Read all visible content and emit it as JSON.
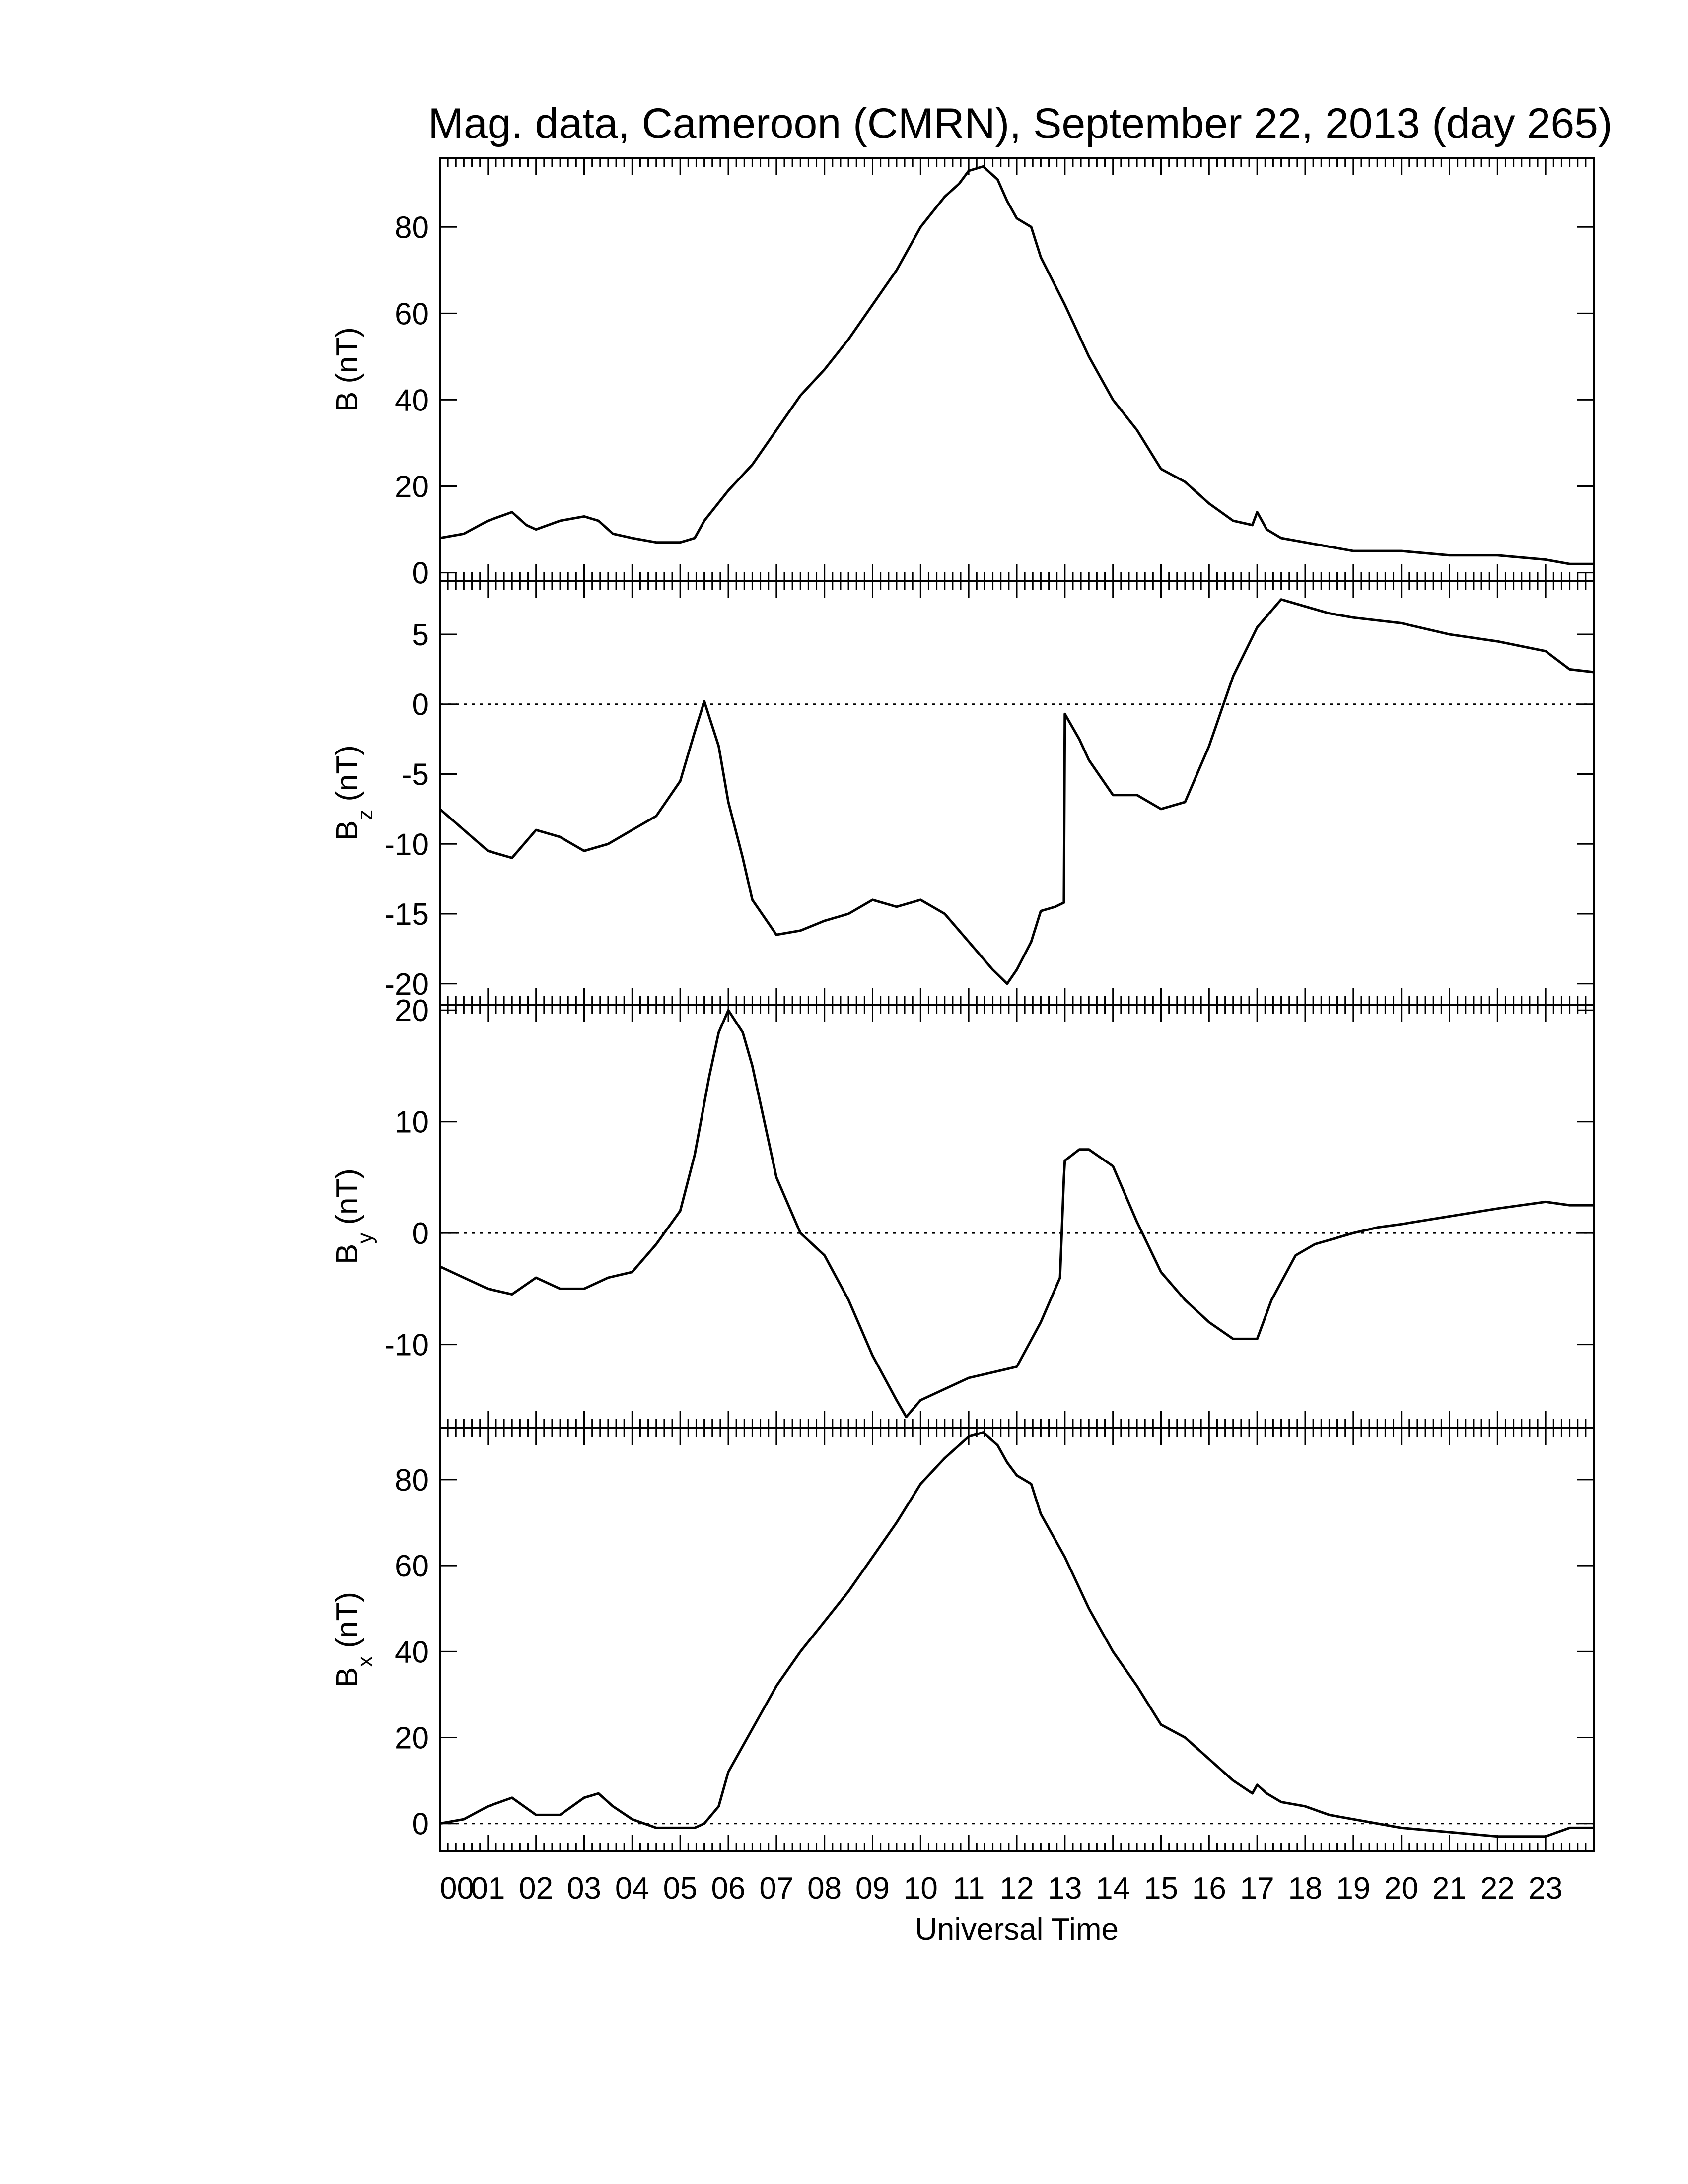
{
  "title": "Mag. data, Cameroon (CMRN), September 22, 2013 (day 265)",
  "chart_data": {
    "type": "line",
    "xlabel": "Universal Time",
    "xlim": [
      0,
      24
    ],
    "x_tick_labels": [
      "00",
      "01",
      "02",
      "03",
      "04",
      "05",
      "06",
      "07",
      "08",
      "09",
      "10",
      "11",
      "12",
      "13",
      "14",
      "15",
      "16",
      "17",
      "18",
      "19",
      "20",
      "21",
      "22",
      "23"
    ],
    "panels": [
      {
        "id": "B",
        "ylabel_main": "B",
        "ylabel_sub": "",
        "ylabel_unit": "(nT)",
        "ylim": [
          -2,
          96
        ],
        "yticks": [
          0,
          20,
          40,
          60,
          80
        ],
        "zero_line": false,
        "x": [
          0,
          0.5,
          1,
          1.5,
          1.8,
          2,
          2.5,
          3,
          3.3,
          3.6,
          4,
          4.5,
          5,
          5.3,
          5.5,
          6,
          6.5,
          7,
          7.5,
          8,
          8.5,
          9,
          9.5,
          10,
          10.5,
          10.8,
          11,
          11.3,
          11.6,
          11.8,
          12,
          12.3,
          12.5,
          13,
          13.5,
          14,
          14.5,
          15,
          15.5,
          16,
          16.5,
          16.9,
          17,
          17.2,
          17.5,
          18,
          18.5,
          19,
          20,
          21,
          22,
          23,
          23.5,
          24
        ],
        "y": [
          8,
          9,
          12,
          14,
          11,
          10,
          12,
          13,
          12,
          9,
          8,
          7,
          7,
          8,
          12,
          19,
          25,
          33,
          41,
          47,
          54,
          62,
          70,
          80,
          87,
          90,
          93,
          94,
          91,
          86,
          82,
          80,
          73,
          62,
          50,
          40,
          33,
          24,
          21,
          16,
          12,
          11,
          14,
          10,
          8,
          7,
          6,
          5,
          5,
          4,
          4,
          3,
          2,
          2
        ]
      },
      {
        "id": "Bz",
        "ylabel_main": "B",
        "ylabel_sub": "z",
        "ylabel_unit": "(nT)",
        "ylim": [
          -21.5,
          8.8
        ],
        "yticks": [
          5,
          0,
          -5,
          -10,
          -15,
          -20
        ],
        "zero_line": true,
        "x": [
          0,
          0.5,
          1,
          1.5,
          2,
          2.5,
          3,
          3.5,
          4,
          4.5,
          5,
          5.3,
          5.5,
          5.8,
          6,
          6.3,
          6.5,
          7,
          7.5,
          8,
          8.5,
          9,
          9.5,
          10,
          10.5,
          11,
          11.5,
          11.8,
          12,
          12.3,
          12.5,
          12.8,
          12.98,
          13,
          13.3,
          13.5,
          14,
          14.5,
          15,
          15.5,
          16,
          16.5,
          17,
          17.5,
          18,
          18.5,
          19,
          20,
          21,
          22,
          23,
          23.5,
          24
        ],
        "y": [
          -7.5,
          -9,
          -10.5,
          -11,
          -9,
          -9.5,
          -10.5,
          -10,
          -9,
          -8,
          -5.5,
          -2,
          0.2,
          -3,
          -7,
          -11,
          -14,
          -16.5,
          -16.2,
          -15.5,
          -15,
          -14,
          -14.5,
          -14,
          -15,
          -17,
          -19,
          -20,
          -19,
          -17,
          -14.8,
          -14.5,
          -14.2,
          -0.7,
          -2.5,
          -4,
          -6.5,
          -6.5,
          -7.5,
          -7,
          -3,
          2,
          5.5,
          7.5,
          7,
          6.5,
          6.2,
          5.8,
          5,
          4.5,
          3.8,
          2.5,
          2.3
        ]
      },
      {
        "id": "By",
        "ylabel_main": "B",
        "ylabel_sub": "y",
        "ylabel_unit": "(nT)",
        "ylim": [
          -17.5,
          20.5
        ],
        "yticks": [
          20,
          10,
          0,
          -10
        ],
        "zero_line": true,
        "x": [
          0,
          0.5,
          1,
          1.5,
          2,
          2.5,
          3,
          3.5,
          4,
          4.5,
          5,
          5.3,
          5.6,
          5.8,
          6,
          6.3,
          6.5,
          7,
          7.5,
          8,
          8.5,
          9,
          9.5,
          9.7,
          10,
          10.5,
          11,
          11.5,
          12,
          12.5,
          12.9,
          12.98,
          13,
          13.3,
          13.5,
          14,
          14.5,
          15,
          15.5,
          16,
          16.5,
          17,
          17.3,
          17.8,
          18.2,
          19,
          19.5,
          20,
          21,
          22,
          23,
          23.5,
          24
        ],
        "y": [
          -3,
          -4,
          -5,
          -5.5,
          -4,
          -5,
          -5,
          -4,
          -3.5,
          -1,
          2,
          7,
          14,
          18,
          20,
          18,
          15,
          5,
          0,
          -2,
          -6,
          -11,
          -15,
          -16.5,
          -15,
          -14,
          -13,
          -12.5,
          -12,
          -8,
          -4,
          5,
          6.5,
          7.5,
          7.5,
          6,
          1,
          -3.5,
          -6,
          -8,
          -9.5,
          -9.5,
          -6,
          -2,
          -1,
          0,
          0.5,
          0.8,
          1.5,
          2.2,
          2.8,
          2.5,
          2.5
        ]
      },
      {
        "id": "Bx",
        "ylabel_main": "B",
        "ylabel_sub": "x",
        "ylabel_unit": "(nT)",
        "ylim": [
          -6.5,
          92
        ],
        "yticks": [
          0,
          20,
          40,
          60,
          80
        ],
        "zero_line": true,
        "x": [
          0,
          0.5,
          1,
          1.5,
          2,
          2.5,
          3,
          3.3,
          3.6,
          4,
          4.5,
          5,
          5.3,
          5.5,
          5.8,
          6,
          6.5,
          7,
          7.5,
          8,
          8.5,
          9,
          9.5,
          10,
          10.5,
          10.8,
          11,
          11.3,
          11.6,
          11.8,
          12,
          12.3,
          12.5,
          13,
          13.5,
          14,
          14.5,
          15,
          15.5,
          16,
          16.5,
          16.9,
          17,
          17.2,
          17.5,
          18,
          18.5,
          19,
          20,
          21,
          22,
          23,
          23.5,
          24
        ],
        "y": [
          0,
          1,
          4,
          6,
          2,
          2,
          6,
          7,
          4,
          1,
          -1,
          -1,
          -1,
          0,
          4,
          12,
          22,
          32,
          40,
          47,
          54,
          62,
          70,
          79,
          85,
          88,
          90,
          91,
          88,
          84,
          81,
          79,
          72,
          62,
          50,
          40,
          32,
          23,
          20,
          15,
          10,
          7,
          9,
          7,
          5,
          4,
          2,
          1,
          -1,
          -2,
          -3,
          -3,
          -1,
          -1
        ]
      }
    ]
  }
}
